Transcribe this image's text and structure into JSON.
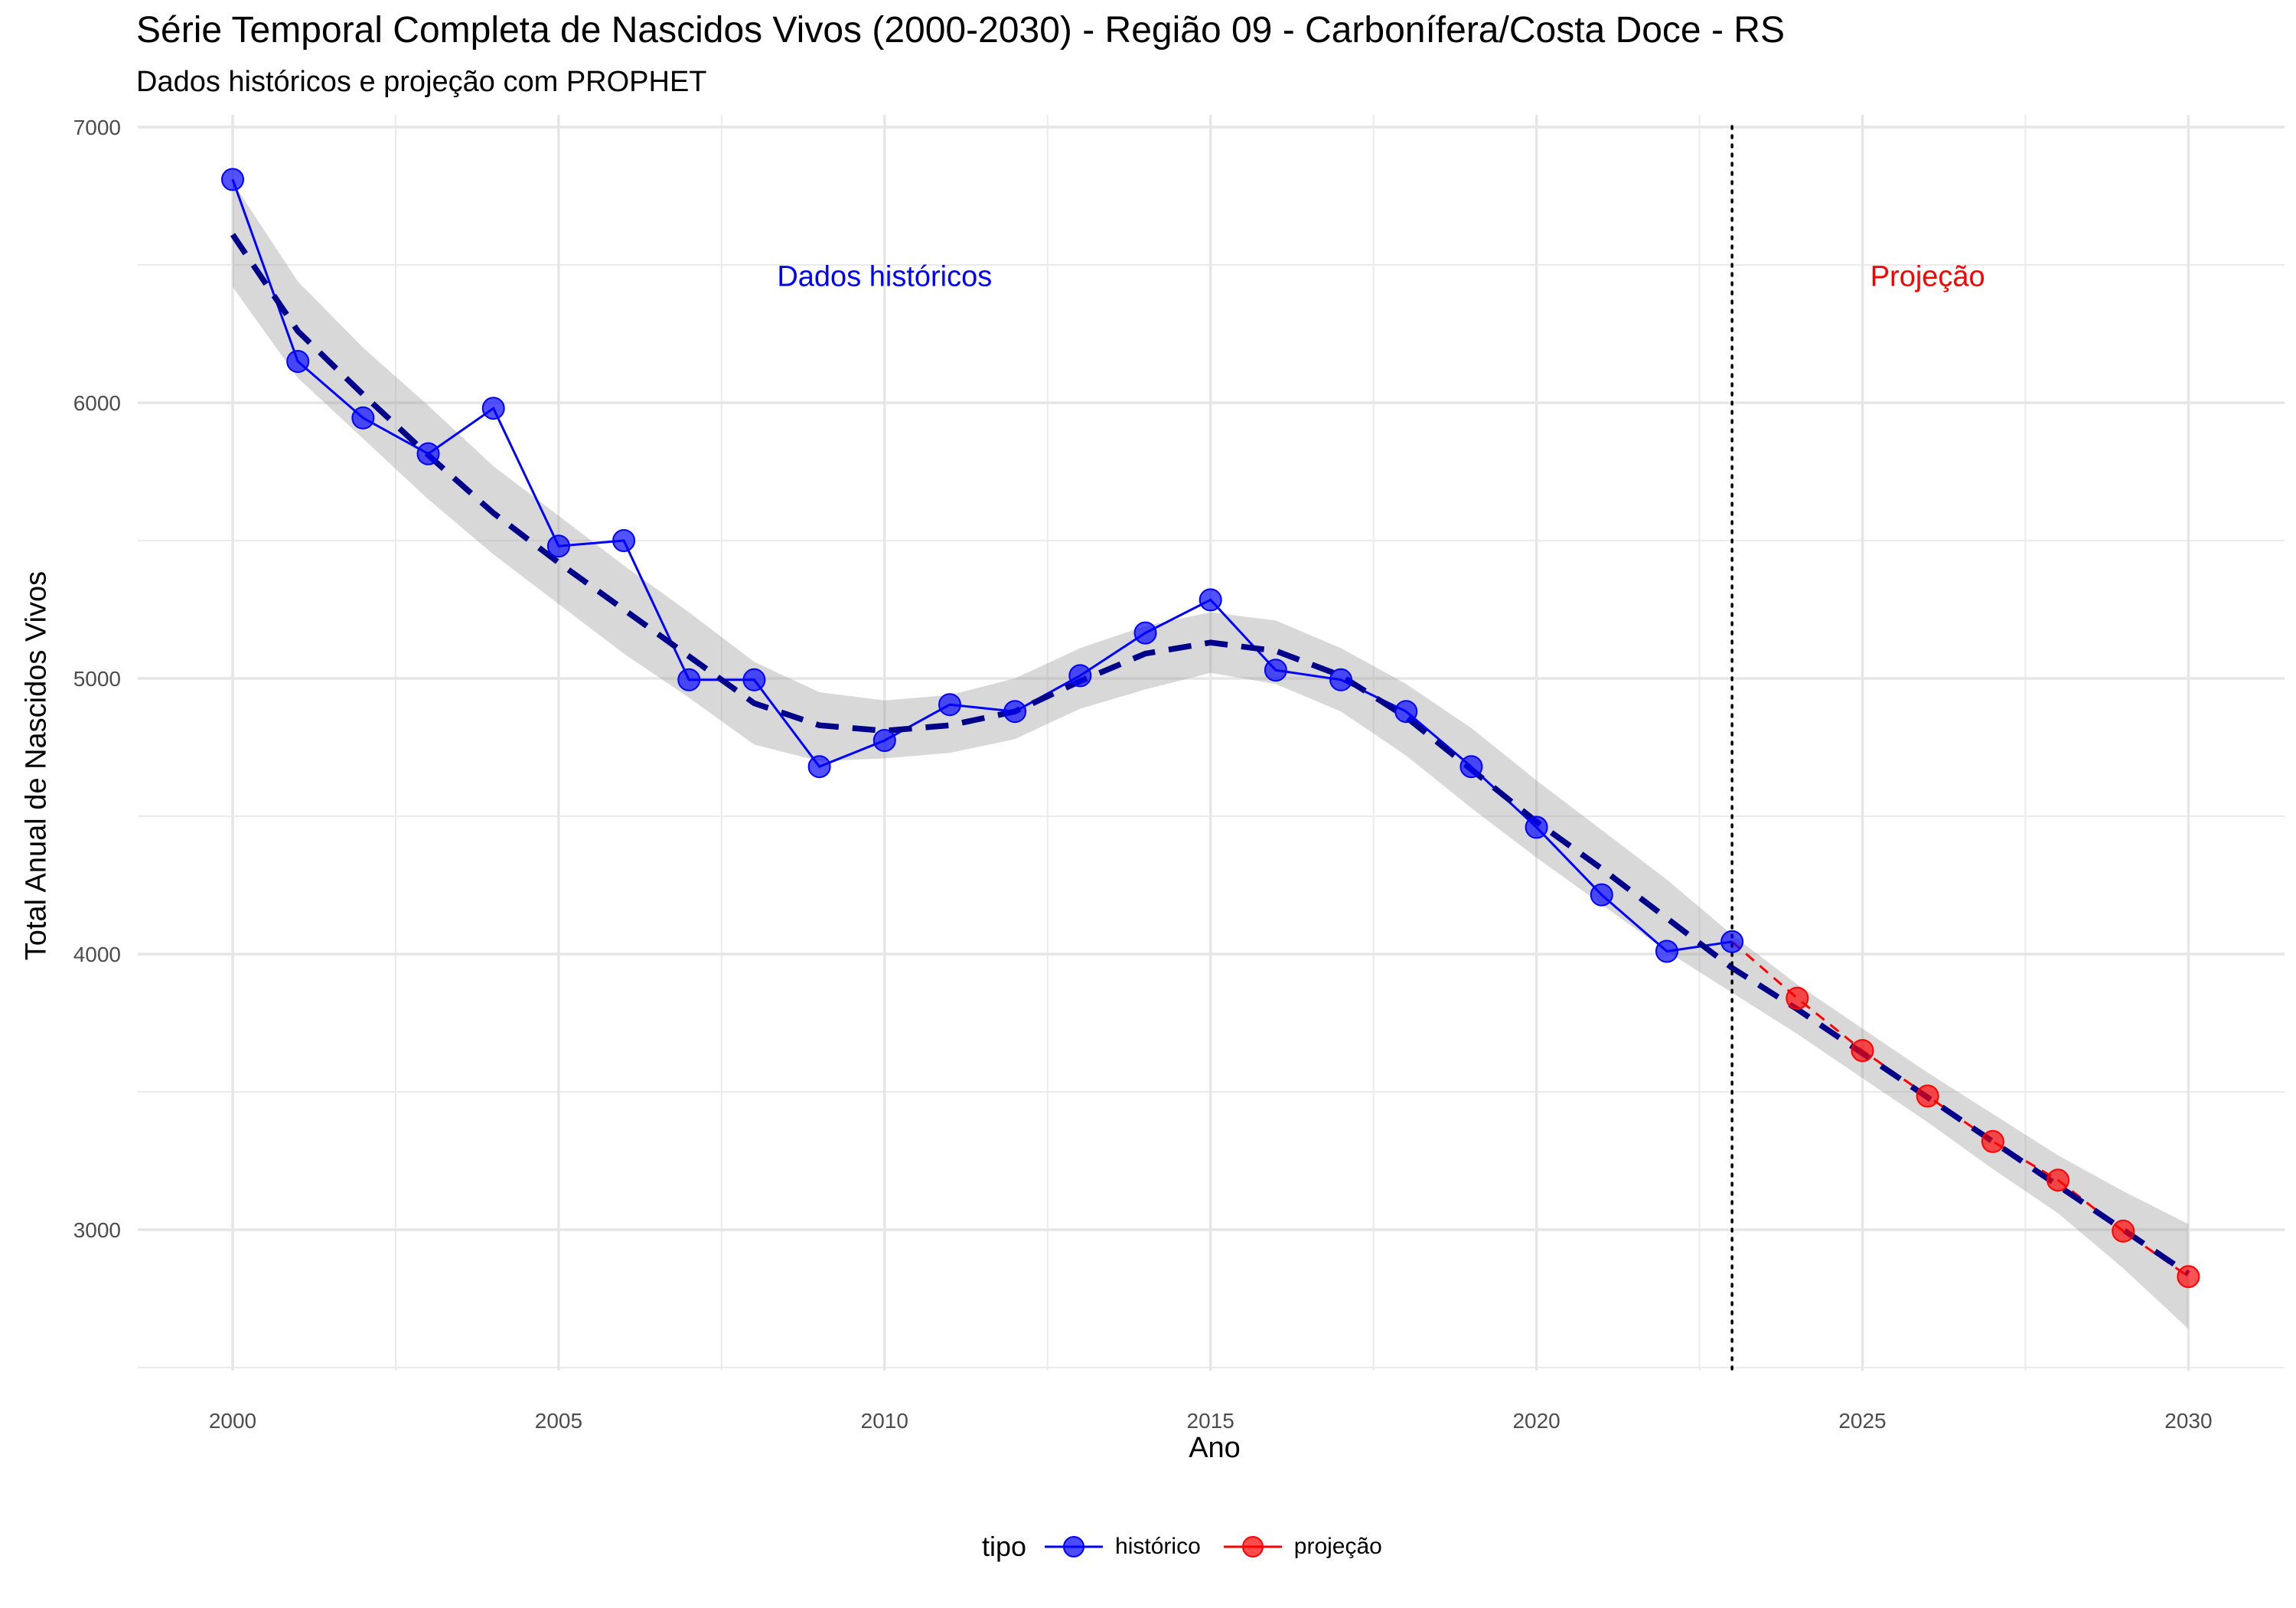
{
  "chart_data": {
    "type": "line",
    "title": "Série Temporal Completa de Nascidos Vivos (2000-2030) -  Região 09 - Carbonífera/Costa Doce - RS",
    "subtitle": "Dados históricos e projeção com PROPHET",
    "xlabel": "Ano",
    "ylabel": "Total Anual de Nascidos Vivos",
    "xlim": [
      1998.5,
      2031.5
    ],
    "ylim": [
      2500,
      7000
    ],
    "x_ticks": [
      2000,
      2005,
      2010,
      2015,
      2020,
      2025,
      2030
    ],
    "y_ticks": [
      3000,
      4000,
      5000,
      6000,
      7000
    ],
    "grid": true,
    "legend": {
      "title": "tipo",
      "placement": "bottom",
      "entries": [
        "histórico",
        "projeção"
      ]
    },
    "series": [
      {
        "name": "histórico",
        "color": "#0000ff",
        "x": [
          2000,
          2001,
          2002,
          2003,
          2004,
          2005,
          2006,
          2007,
          2008,
          2009,
          2010,
          2011,
          2012,
          2013,
          2014,
          2015,
          2016,
          2017,
          2018,
          2019,
          2020,
          2021,
          2022,
          2023
        ],
        "values": [
          6810,
          6150,
          5945,
          5815,
          5980,
          5480,
          5500,
          4995,
          4995,
          4680,
          4775,
          4905,
          4880,
          5010,
          5165,
          5285,
          5030,
          4995,
          4880,
          4680,
          4460,
          4215,
          4010,
          4045
        ]
      },
      {
        "name": "projeção",
        "color": "#ff0000",
        "x": [
          2023,
          2024,
          2025,
          2026,
          2027,
          2028,
          2029,
          2030
        ],
        "values": [
          4045,
          3840,
          3650,
          3485,
          3320,
          3180,
          2995,
          2830
        ]
      }
    ],
    "trend": {
      "color": "#00008b",
      "x": [
        2000,
        2001,
        2002,
        2003,
        2004,
        2005,
        2006,
        2007,
        2008,
        2009,
        2010,
        2011,
        2012,
        2013,
        2014,
        2015,
        2016,
        2017,
        2018,
        2019,
        2020,
        2021,
        2022,
        2023,
        2024,
        2025,
        2026,
        2027,
        2028,
        2029,
        2030
      ],
      "values": [
        6610,
        6260,
        6030,
        5810,
        5600,
        5420,
        5250,
        5080,
        4910,
        4830,
        4810,
        4830,
        4880,
        4990,
        5090,
        5130,
        5100,
        5010,
        4860,
        4670,
        4480,
        4310,
        4130,
        3950,
        3800,
        3640,
        3480,
        3320,
        3160,
        3000,
        2840
      ],
      "band_lower": [
        6420,
        6090,
        5870,
        5650,
        5450,
        5270,
        5090,
        4930,
        4760,
        4700,
        4710,
        4730,
        4780,
        4890,
        4960,
        5020,
        4980,
        4880,
        4720,
        4530,
        4350,
        4180,
        4010,
        3860,
        3710,
        3550,
        3390,
        3220,
        3060,
        2860,
        2640
      ],
      "band_upper": [
        6800,
        6440,
        6200,
        5990,
        5770,
        5590,
        5410,
        5240,
        5060,
        4950,
        4920,
        4940,
        5000,
        5110,
        5190,
        5240,
        5210,
        5110,
        4980,
        4820,
        4630,
        4450,
        4270,
        4070,
        3890,
        3730,
        3570,
        3420,
        3270,
        3140,
        3020
      ]
    },
    "split_x": 2023,
    "annotations": [
      {
        "text": "Dados históricos",
        "x": 2010,
        "y": 6460,
        "color": "#0000ff"
      },
      {
        "text": "Projeção",
        "x": 2026,
        "y": 6460,
        "color": "#ff0000"
      }
    ]
  }
}
